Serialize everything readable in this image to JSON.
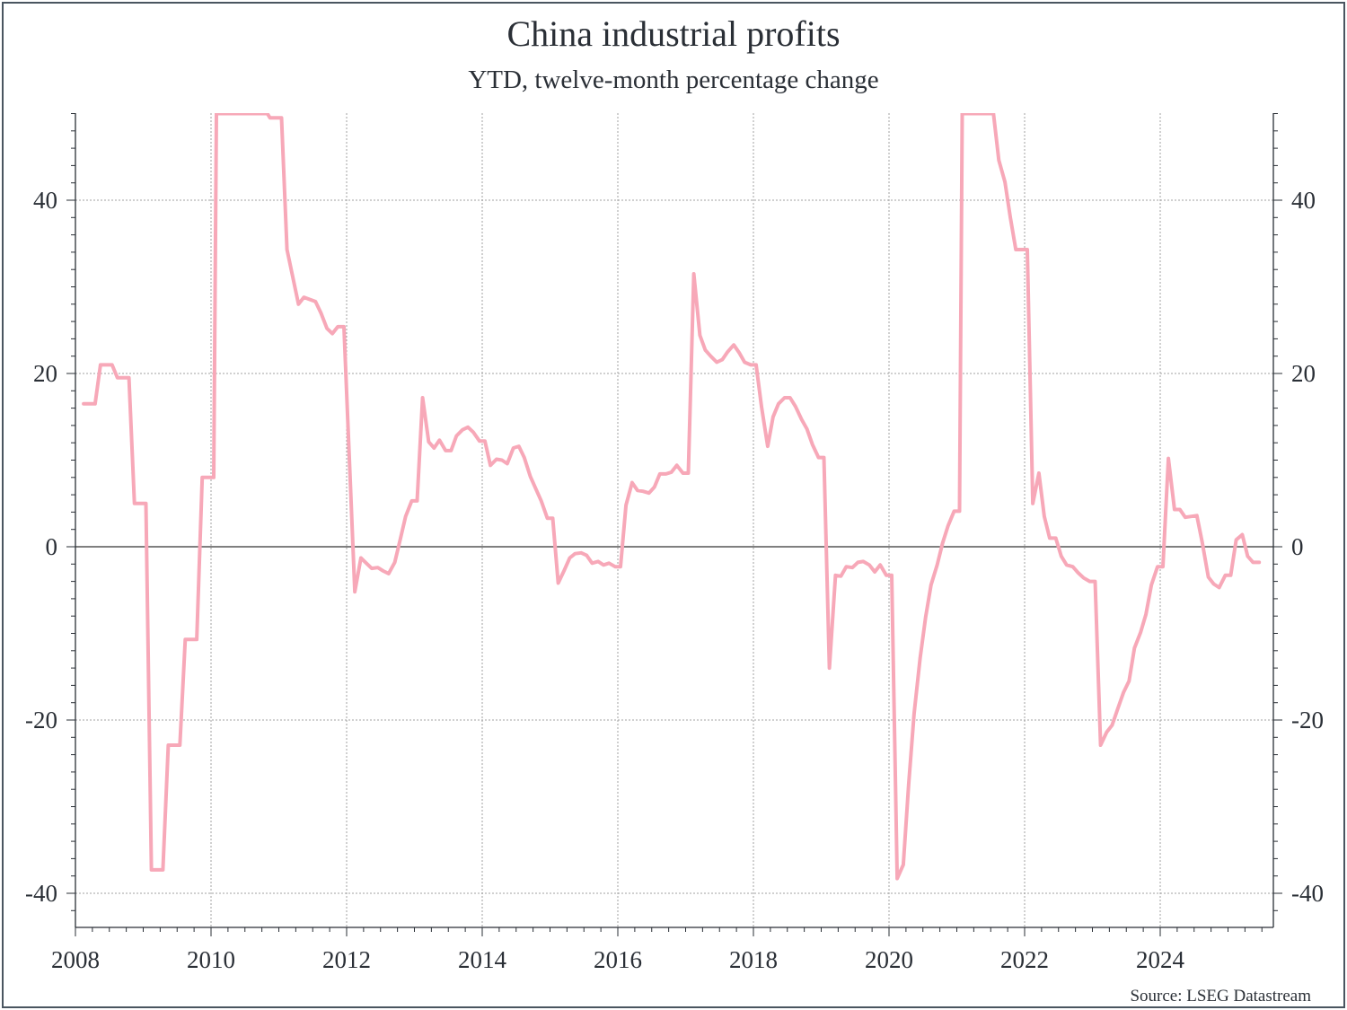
{
  "title": "China industrial profits",
  "subtitle": "YTD, twelve-month percentage change",
  "source": "Source: LSEG Datastream",
  "colors": {
    "series": "#f7a8b8",
    "grid": "#a0a0a0",
    "axis": "#2a2f36",
    "zero_line": "#333333"
  },
  "chart_data": {
    "type": "line",
    "title": "China industrial profits",
    "subtitle": "YTD, twelve-month percentage change",
    "xlim": [
      2008,
      2025.8
    ],
    "ylim": [
      -44,
      50
    ],
    "x_ticks": [
      2008,
      2010,
      2012,
      2014,
      2016,
      2018,
      2020,
      2022,
      2024
    ],
    "x_tick_labels": [
      "2008",
      "2010",
      "2012",
      "2014",
      "2016",
      "2018",
      "2020",
      "2022",
      "2024"
    ],
    "y_ticks": [
      -40,
      -20,
      0,
      20,
      40
    ],
    "y_tick_labels": [
      "-40",
      "-20",
      "0",
      "20",
      "40"
    ],
    "grid": true,
    "zero_line": true,
    "right_axis": true,
    "series": [
      {
        "points": [
          [
            2008.12,
            16.5
          ],
          [
            2008.29,
            16.5
          ],
          [
            2008.37,
            21
          ],
          [
            2008.54,
            21
          ],
          [
            2008.62,
            19.5
          ],
          [
            2008.79,
            19.5
          ],
          [
            2008.87,
            5
          ],
          [
            2009.04,
            5
          ],
          [
            2009.12,
            -37.3
          ],
          [
            2009.29,
            -37.3
          ],
          [
            2009.37,
            -22.9
          ],
          [
            2009.54,
            -22.9
          ],
          [
            2009.62,
            -10.7
          ],
          [
            2009.79,
            -10.7
          ],
          [
            2009.87,
            8
          ],
          [
            2010.04,
            8
          ],
          [
            2010.08,
            50
          ],
          [
            2010.83,
            50
          ],
          [
            2010.87,
            49.5
          ],
          [
            2011.04,
            49.5
          ],
          [
            2011.12,
            34.3
          ],
          [
            2011.29,
            28
          ],
          [
            2011.37,
            28.8
          ],
          [
            2011.54,
            28.3
          ],
          [
            2011.62,
            27
          ],
          [
            2011.71,
            25.2
          ],
          [
            2011.79,
            24.6
          ],
          [
            2011.87,
            25.4
          ],
          [
            2011.96,
            25.4
          ],
          [
            2012.12,
            -5.2
          ],
          [
            2012.21,
            -1.3
          ],
          [
            2012.29,
            -1.9
          ],
          [
            2012.37,
            -2.5
          ],
          [
            2012.46,
            -2.4
          ],
          [
            2012.54,
            -2.8
          ],
          [
            2012.62,
            -3.1
          ],
          [
            2012.71,
            -1.8
          ],
          [
            2012.79,
            0.8
          ],
          [
            2012.87,
            3.5
          ],
          [
            2012.96,
            5.3
          ],
          [
            2013.04,
            5.3
          ],
          [
            2013.12,
            17.2
          ],
          [
            2013.21,
            12.1
          ],
          [
            2013.29,
            11.4
          ],
          [
            2013.37,
            12.3
          ],
          [
            2013.46,
            11.1
          ],
          [
            2013.54,
            11.1
          ],
          [
            2013.62,
            12.8
          ],
          [
            2013.71,
            13.5
          ],
          [
            2013.79,
            13.8
          ],
          [
            2013.87,
            13.2
          ],
          [
            2013.96,
            12.2
          ],
          [
            2014.04,
            12.2
          ],
          [
            2014.12,
            9.4
          ],
          [
            2014.21,
            10.1
          ],
          [
            2014.29,
            10
          ],
          [
            2014.37,
            9.6
          ],
          [
            2014.46,
            11.4
          ],
          [
            2014.54,
            11.6
          ],
          [
            2014.62,
            10.3
          ],
          [
            2014.71,
            8.1
          ],
          [
            2014.79,
            6.7
          ],
          [
            2014.87,
            5.3
          ],
          [
            2014.96,
            3.3
          ],
          [
            2015.04,
            3.3
          ],
          [
            2015.12,
            -4.2
          ],
          [
            2015.21,
            -2.7
          ],
          [
            2015.29,
            -1.3
          ],
          [
            2015.37,
            -0.8
          ],
          [
            2015.46,
            -0.7
          ],
          [
            2015.54,
            -1
          ],
          [
            2015.62,
            -1.9
          ],
          [
            2015.71,
            -1.7
          ],
          [
            2015.79,
            -2.1
          ],
          [
            2015.87,
            -1.9
          ],
          [
            2015.96,
            -2.3
          ],
          [
            2016.04,
            -2.3
          ],
          [
            2016.12,
            4.8
          ],
          [
            2016.21,
            7.4
          ],
          [
            2016.29,
            6.5
          ],
          [
            2016.37,
            6.4
          ],
          [
            2016.46,
            6.2
          ],
          [
            2016.54,
            6.9
          ],
          [
            2016.62,
            8.4
          ],
          [
            2016.71,
            8.4
          ],
          [
            2016.79,
            8.6
          ],
          [
            2016.87,
            9.4
          ],
          [
            2016.96,
            8.5
          ],
          [
            2017.04,
            8.5
          ],
          [
            2017.12,
            31.5
          ],
          [
            2017.21,
            24.4
          ],
          [
            2017.29,
            22.7
          ],
          [
            2017.37,
            22
          ],
          [
            2017.46,
            21.3
          ],
          [
            2017.54,
            21.6
          ],
          [
            2017.62,
            22.5
          ],
          [
            2017.71,
            23.3
          ],
          [
            2017.79,
            22.4
          ],
          [
            2017.87,
            21.3
          ],
          [
            2017.96,
            21
          ],
          [
            2018.04,
            21
          ],
          [
            2018.12,
            16.1
          ],
          [
            2018.21,
            11.6
          ],
          [
            2018.29,
            15
          ],
          [
            2018.37,
            16.5
          ],
          [
            2018.46,
            17.2
          ],
          [
            2018.54,
            17.2
          ],
          [
            2018.62,
            16.2
          ],
          [
            2018.71,
            14.7
          ],
          [
            2018.79,
            13.6
          ],
          [
            2018.87,
            11.8
          ],
          [
            2018.96,
            10.3
          ],
          [
            2019.04,
            10.3
          ],
          [
            2019.12,
            -14
          ],
          [
            2019.21,
            -3.3
          ],
          [
            2019.29,
            -3.4
          ],
          [
            2019.37,
            -2.3
          ],
          [
            2019.46,
            -2.4
          ],
          [
            2019.54,
            -1.8
          ],
          [
            2019.62,
            -1.7
          ],
          [
            2019.71,
            -2.1
          ],
          [
            2019.79,
            -2.9
          ],
          [
            2019.87,
            -2.1
          ],
          [
            2019.96,
            -3.3
          ],
          [
            2020.04,
            -3.3
          ],
          [
            2020.12,
            -38.3
          ],
          [
            2020.21,
            -36.7
          ],
          [
            2020.29,
            -27.4
          ],
          [
            2020.37,
            -19.3
          ],
          [
            2020.46,
            -12.8
          ],
          [
            2020.54,
            -8.1
          ],
          [
            2020.62,
            -4.4
          ],
          [
            2020.71,
            -2.1
          ],
          [
            2020.79,
            0.4
          ],
          [
            2020.87,
            2.4
          ],
          [
            2020.96,
            4.1
          ],
          [
            2021.04,
            4.1
          ],
          [
            2021.08,
            50
          ],
          [
            2021.54,
            50
          ],
          [
            2021.62,
            44.6
          ],
          [
            2021.71,
            42.1
          ],
          [
            2021.79,
            38
          ],
          [
            2021.87,
            34.3
          ],
          [
            2021.96,
            34.3
          ],
          [
            2022.04,
            34.3
          ],
          [
            2022.12,
            5
          ],
          [
            2022.21,
            8.5
          ],
          [
            2022.29,
            3.5
          ],
          [
            2022.37,
            1
          ],
          [
            2022.46,
            1
          ],
          [
            2022.54,
            -1.1
          ],
          [
            2022.62,
            -2.1
          ],
          [
            2022.71,
            -2.3
          ],
          [
            2022.79,
            -3
          ],
          [
            2022.87,
            -3.6
          ],
          [
            2022.96,
            -4
          ],
          [
            2023.04,
            -4
          ],
          [
            2023.12,
            -22.9
          ],
          [
            2023.21,
            -21.4
          ],
          [
            2023.29,
            -20.6
          ],
          [
            2023.37,
            -18.8
          ],
          [
            2023.46,
            -16.8
          ],
          [
            2023.54,
            -15.5
          ],
          [
            2023.62,
            -11.7
          ],
          [
            2023.71,
            -9.9
          ],
          [
            2023.79,
            -7.8
          ],
          [
            2023.87,
            -4.4
          ],
          [
            2023.96,
            -2.3
          ],
          [
            2024.04,
            -2.3
          ],
          [
            2024.12,
            10.2
          ],
          [
            2024.21,
            4.3
          ],
          [
            2024.29,
            4.3
          ],
          [
            2024.37,
            3.4
          ],
          [
            2024.46,
            3.5
          ],
          [
            2024.54,
            3.6
          ],
          [
            2024.62,
            0.5
          ],
          [
            2024.71,
            -3.5
          ],
          [
            2024.79,
            -4.3
          ],
          [
            2024.87,
            -4.7
          ],
          [
            2024.96,
            -3.3
          ],
          [
            2025.04,
            -3.3
          ],
          [
            2025.12,
            0.8
          ],
          [
            2025.21,
            1.4
          ],
          [
            2025.29,
            -1.1
          ],
          [
            2025.37,
            -1.8
          ],
          [
            2025.46,
            -1.8
          ]
        ]
      }
    ]
  }
}
